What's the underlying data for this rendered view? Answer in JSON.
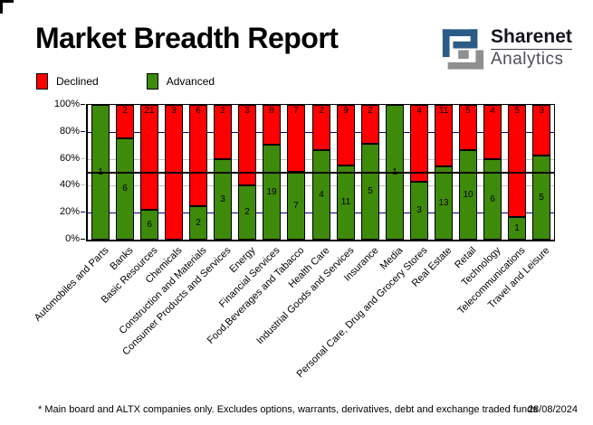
{
  "header": {
    "title": "Market Breadth Report",
    "logo_line1": "Sharenet",
    "logo_line2": "Analytics"
  },
  "legend": [
    {
      "label": "Declined",
      "color": "#ff0000"
    },
    {
      "label": "Advanced",
      "color": "#3e8a0a"
    }
  ],
  "footer": {
    "note": "* Main board and ALTX companies only. Excludes options, warrants, derivatives, debt and exchange traded funds",
    "date": "28/08/2024"
  },
  "chart_data": {
    "type": "bar",
    "stacked_percent": true,
    "title": "Market Breadth Report",
    "categories": [
      "Automobiles and Parts",
      "Banks",
      "Basic Resources",
      "Chemicals",
      "Construction and Materials",
      "Consumer Products and Services",
      "Energy",
      "Financial Services",
      "Food,Beverages and Tabacco",
      "Health Care",
      "Industrial Goods and Services",
      "Insurance",
      "Media",
      "Personal Care, Drug and Grocery Stores",
      "Real Estate",
      "Retail",
      "Technology",
      "Telecommunications",
      "Travel and Leisure"
    ],
    "series": [
      {
        "name": "Declined",
        "color": "#ff0000",
        "values": [
          0,
          2,
          21,
          3,
          6,
          2,
          3,
          8,
          7,
          2,
          9,
          2,
          0,
          4,
          11,
          5,
          4,
          5,
          3
        ]
      },
      {
        "name": "Advanced",
        "color": "#3e8a0a",
        "values": [
          1,
          6,
          6,
          0,
          2,
          3,
          2,
          19,
          7,
          4,
          11,
          5,
          1,
          3,
          13,
          10,
          6,
          1,
          5
        ]
      }
    ],
    "ylabel_ticks": [
      "100%",
      "80%",
      "60%",
      "40%",
      "20%",
      "0%"
    ],
    "ylim": [
      0,
      100
    ],
    "gridlines": {
      "navy_levels": [
        80,
        20
      ],
      "gray_levels": [
        60,
        40
      ],
      "black_reference_level": 50
    },
    "colors": {
      "navy": "#000080",
      "gray": "#c0c0c0",
      "reference": "#000000"
    },
    "legend_position": "top-left",
    "value_labels": "company counts shown on each segment (hidden when 0)"
  }
}
